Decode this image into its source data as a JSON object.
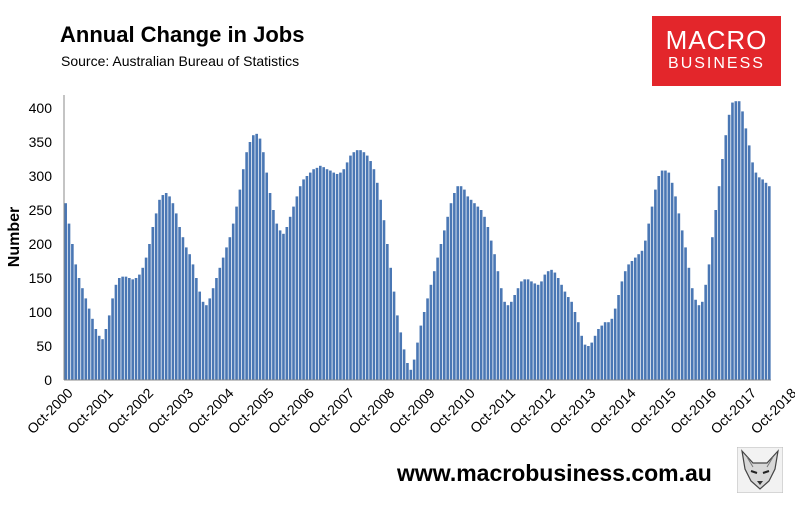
{
  "header": {
    "title": "Annual Change in Jobs",
    "subtitle": "Source: Australian Bureau of Statistics"
  },
  "logo": {
    "line1": "MACRO",
    "line2": "BUSINESS",
    "color": "#e3262b"
  },
  "footer": {
    "url": "www.macrobusiness.com.au"
  },
  "chart_data": {
    "type": "bar",
    "title": "Annual Change in Jobs",
    "xlabel": "",
    "ylabel": "Number",
    "ylim": [
      0,
      420
    ],
    "yticks": [
      0,
      50,
      100,
      150,
      200,
      250,
      300,
      350,
      400
    ],
    "xtick_labels": [
      "Oct-2000",
      "Oct-2001",
      "Oct-2002",
      "Oct-2003",
      "Oct-2004",
      "Oct-2005",
      "Oct-2006",
      "Oct-2007",
      "Oct-2008",
      "Oct-2009",
      "Oct-2010",
      "Oct-2011",
      "Oct-2012",
      "Oct-2013",
      "Oct-2014",
      "Oct-2015",
      "Oct-2016",
      "Oct-2017",
      "Oct-2018"
    ],
    "grid": false,
    "legend": "none",
    "bar_color": "#4a77b4",
    "series": [
      {
        "values": [
          260,
          230,
          200,
          170,
          150,
          135,
          120,
          105,
          90,
          75,
          65,
          60,
          75,
          95,
          120,
          140,
          150,
          152,
          152,
          150,
          148,
          150,
          155,
          165,
          180,
          200,
          225,
          245,
          265,
          272,
          275,
          270,
          260,
          245,
          225,
          210,
          195,
          185,
          170,
          150,
          130,
          115,
          110,
          120,
          135,
          150,
          165,
          180,
          195,
          210,
          230,
          255,
          280,
          310,
          335,
          350,
          360,
          362,
          355,
          335,
          305,
          275,
          250,
          230,
          220,
          215,
          225,
          240,
          255,
          270,
          285,
          295,
          300,
          305,
          310,
          312,
          315,
          313,
          310,
          308,
          305,
          303,
          305,
          310,
          320,
          330,
          335,
          338,
          338,
          335,
          330,
          322,
          310,
          290,
          265,
          235,
          200,
          165,
          130,
          95,
          70,
          45,
          25,
          15,
          30,
          55,
          80,
          100,
          120,
          140,
          160,
          180,
          200,
          220,
          240,
          260,
          275,
          285,
          285,
          280,
          270,
          265,
          260,
          255,
          250,
          240,
          225,
          205,
          185,
          160,
          135,
          115,
          110,
          115,
          125,
          135,
          145,
          148,
          148,
          145,
          142,
          140,
          145,
          155,
          160,
          162,
          158,
          150,
          140,
          130,
          122,
          115,
          100,
          85,
          65,
          52,
          50,
          55,
          65,
          75,
          80,
          85,
          85,
          90,
          105,
          125,
          145,
          160,
          170,
          175,
          180,
          185,
          190,
          205,
          230,
          255,
          280,
          300,
          308,
          308,
          305,
          290,
          270,
          245,
          220,
          195,
          165,
          135,
          118,
          110,
          115,
          140,
          170,
          210,
          250,
          285,
          325,
          360,
          390,
          408,
          410,
          410,
          395,
          370,
          345,
          320,
          305,
          298,
          295,
          290,
          285
        ]
      }
    ]
  }
}
